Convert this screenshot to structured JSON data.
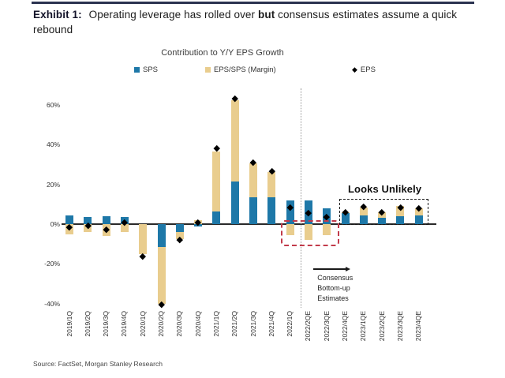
{
  "exhibit": {
    "label": "Exhibit 1:",
    "title_part1": " Operating leverage has rolled over ",
    "title_emphasis": "but",
    "title_part2": " consensus estimates assume a quick rebound"
  },
  "source": "Source: FactSet, Morgan Stanley Research",
  "chart_data": {
    "type": "bar",
    "stacked": true,
    "title": "Contribution to Y/Y EPS Growth",
    "categories": [
      "2019/1Q",
      "2019/2Q",
      "2019/3Q",
      "2019/4Q",
      "2020/1Q",
      "2020/2Q",
      "2020/3Q",
      "2020/4Q",
      "2021/1Q",
      "2021/2Q",
      "2021/3Q",
      "2021/4Q",
      "2022/1Q",
      "2022/2QE",
      "2022/3QE",
      "2022/4QE",
      "2023/1QE",
      "2023/2QE",
      "2023/3QE",
      "2023/4QE"
    ],
    "series": [
      {
        "name": "SPS",
        "color": "#1e78a8",
        "values": [
          4.5,
          3.5,
          4,
          3.5,
          0,
          -11.5,
          -4,
          -1,
          6.5,
          21.5,
          13.5,
          13.5,
          12,
          12,
          8,
          5.5,
          4.5,
          3,
          4,
          4.5
        ]
      },
      {
        "name": "EPS/SPS (Margin)",
        "color": "#e9cd8e",
        "values": [
          -5,
          -4,
          -6,
          -4,
          -15,
          -28.5,
          -3.5,
          2,
          30,
          41,
          17,
          12.5,
          -5.5,
          -8,
          -5.5,
          0.5,
          4,
          3,
          5,
          3.5
        ]
      }
    ],
    "markers": {
      "name": "EPS",
      "shape": "diamond",
      "color": "#000000",
      "values": [
        -1.5,
        -0.5,
        -2.5,
        1,
        -16,
        -40.5,
        -8,
        1,
        38,
        63,
        31,
        26.5,
        8.5,
        5.5,
        3.5,
        6,
        9,
        6,
        8.5,
        8
      ]
    },
    "ylim": [
      -45,
      70
    ],
    "yticks": [
      60,
      40,
      20,
      0,
      -20,
      -40
    ],
    "ytick_labels": [
      "60%",
      "40%",
      "20%",
      "0%",
      "-20%",
      "-40%"
    ],
    "grid": false,
    "legend_position": "top",
    "annotations": {
      "divider": {
        "after_category": "2022/1Q",
        "style": "dotted-vertical-line"
      },
      "red_box": {
        "from_category": "2022/1Q",
        "to_category": "2022/3QE",
        "top_pct": 2,
        "bottom_pct": -9.5,
        "color": "#c23b4b"
      },
      "looks_unlikely": {
        "label": "Looks Unlikely",
        "from_category": "2022/4QE",
        "to_category": "2023/4QE",
        "top_pct": 12.7,
        "bottom_pct": 0.4
      },
      "consensus": {
        "label": "Consensus\nBottom-up\nEstimates",
        "arrow": "right"
      }
    }
  }
}
